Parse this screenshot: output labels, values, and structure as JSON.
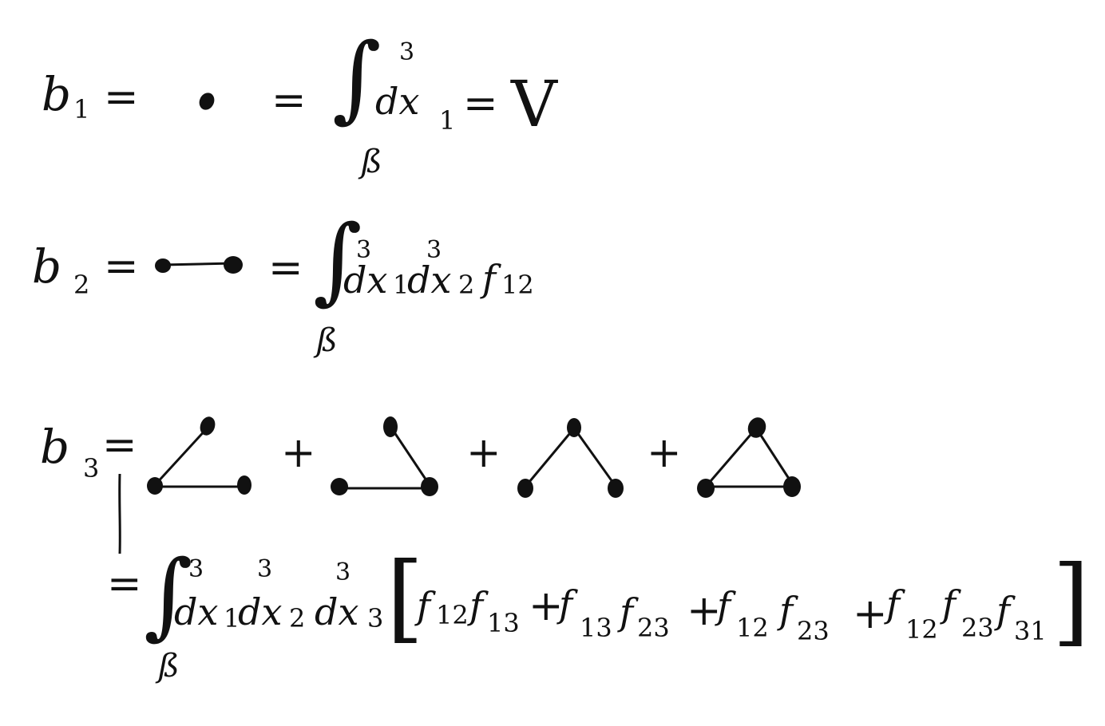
{
  "row1": {
    "lhs_letter": "b",
    "lhs_index": "1",
    "equals": "=",
    "equals2": "=",
    "integral": "∫",
    "dimension": "3",
    "domain": "ß",
    "integrand": "dx",
    "integrand_index": "1",
    "equals3": "=",
    "result": "V"
  },
  "row2": {
    "lhs_letter": "b",
    "lhs_index": "2",
    "equals": "=",
    "equals2": "=",
    "integral": "∫",
    "domain": "ß",
    "dim1": "3",
    "dim2": "3",
    "d1": "dx",
    "i1": "1",
    "d2": "dx",
    "i2": "2",
    "f": "f",
    "f_index": "12"
  },
  "row3": {
    "lhs_letter": "b",
    "lhs_index": "3",
    "equals": "=",
    "plus1": "+",
    "plus2": "+",
    "plus3": "+",
    "equals2": "=",
    "integral": "∫",
    "domain": "ß",
    "dim1": "3",
    "dim2": "3",
    "dim3": "3",
    "d1": "dx",
    "i1": "1",
    "d2": "dx",
    "i2": "2",
    "d3": "dx",
    "i3": "3",
    "lbracket": "[",
    "rbracket": "]",
    "terms": [
      {
        "f1": "f",
        "s1": "12",
        "f2": "f",
        "s2": "13"
      },
      {
        "plus": "+",
        "f1": "f",
        "s1": "13",
        "f2": "f",
        "s2": "23"
      },
      {
        "plus": "+",
        "f1": "f",
        "s1": "12",
        "f2": "f",
        "s2": "23"
      },
      {
        "plus": "+",
        "f1": "f",
        "s1": "12",
        "f2": "f",
        "s2": "23",
        "f3": "f",
        "s3": "31"
      }
    ]
  }
}
